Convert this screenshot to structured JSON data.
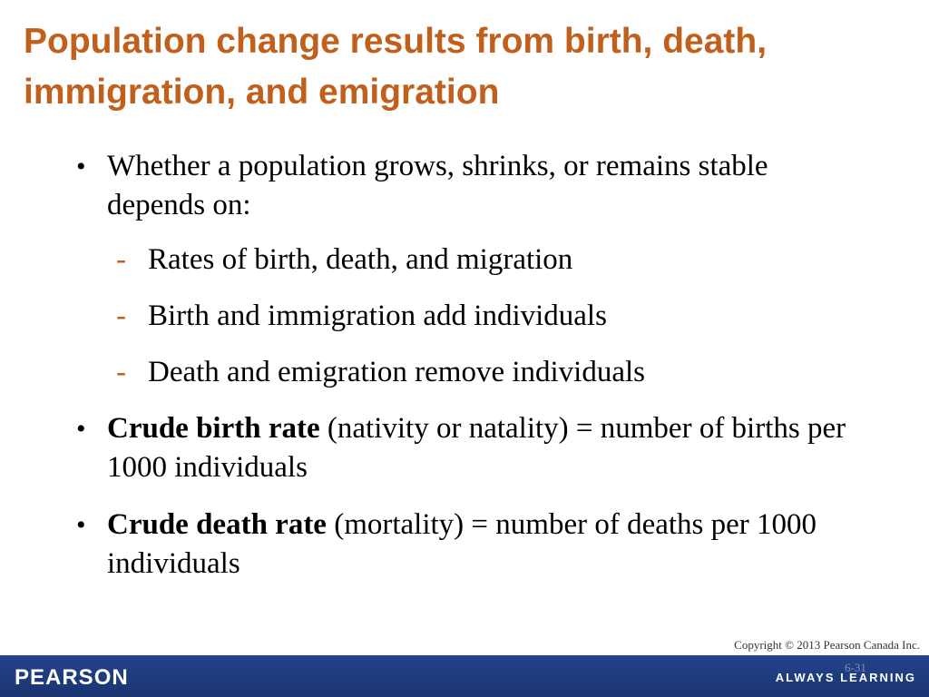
{
  "slide": {
    "title": "Population change results from birth, death, immigration, and emigration",
    "bullet_mark": "•",
    "dash_mark": "-",
    "bullets": [
      {
        "text": "Whether a population grows, shrinks, or remains stable depends on:",
        "subs": [
          "Rates of birth, death, and migration",
          "Birth and immigration add individuals",
          "Death and emigration remove individuals"
        ]
      },
      {
        "bold": "Crude birth rate",
        "rest": " (nativity or natality) = number of births per 1000 individuals"
      },
      {
        "bold": "Crude death rate",
        "rest": " (mortality) = number of deaths per 1000 individuals"
      }
    ]
  },
  "footer": {
    "copyright": "Copyright © 2013 Pearson Canada Inc.",
    "slide_number": "6-31",
    "logo": "PEARSON",
    "tagline": "ALWAYS LEARNING"
  },
  "colors": {
    "title": "#c0601c",
    "footer_bar": "#1f3a7a"
  }
}
